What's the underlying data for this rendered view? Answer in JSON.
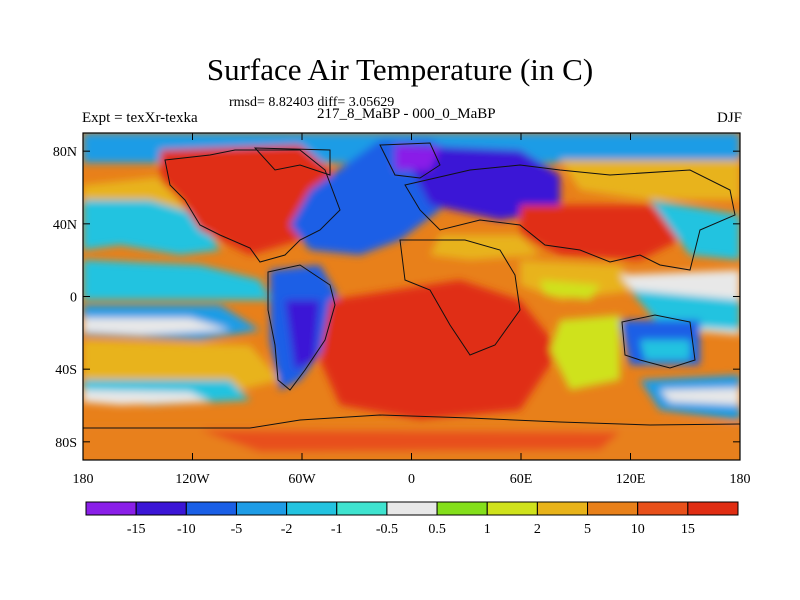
{
  "title": "Surface Air Temperature (in C)",
  "stats": "rmsd= 8.82403 diff= 3.05629",
  "experiment": "Expt = texXr-texka",
  "comparison": "217_8_MaBP - 000_0_MaBP",
  "season": "DJF",
  "lat_labels": [
    "80N",
    "40N",
    "0",
    "40S",
    "80S"
  ],
  "lat_values": [
    80,
    40,
    0,
    -40,
    -80
  ],
  "lon_labels": [
    "180",
    "120W",
    "60W",
    "0",
    "60E",
    "120E",
    "180"
  ],
  "lon_values": [
    -180,
    -120,
    -60,
    0,
    60,
    120,
    180
  ],
  "colorbar": {
    "labels": [
      "-15",
      "-10",
      "-5",
      "-2",
      "-1",
      "-0.5",
      "0.5",
      "1",
      "2",
      "5",
      "10",
      "15"
    ],
    "colors": [
      "#8a1fe8",
      "#3b16d6",
      "#1a5fe6",
      "#1e9ce6",
      "#23c3e0",
      "#3fe3cf",
      "#e8e8e8",
      "#84df1b",
      "#cfe21c",
      "#e8b31a",
      "#e8801a",
      "#e8501a",
      "#e02d12"
    ]
  }
}
